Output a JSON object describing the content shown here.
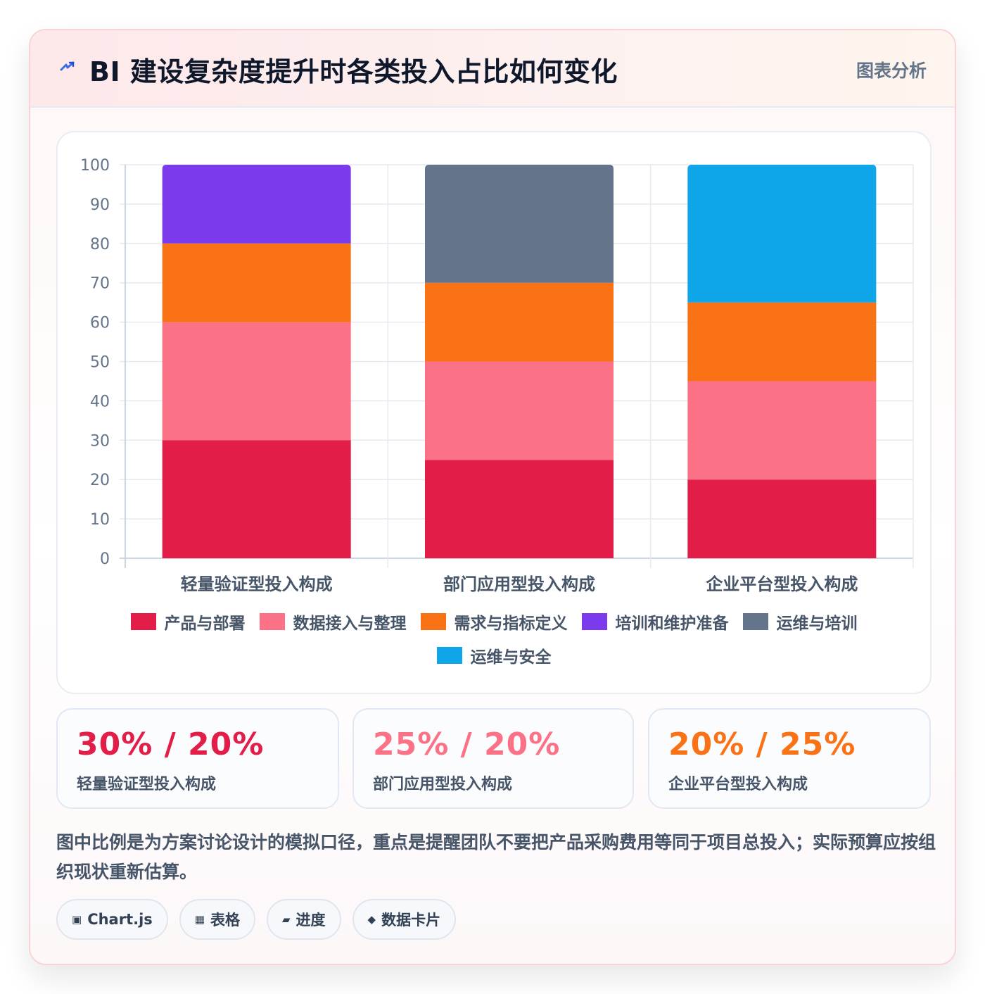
{
  "header": {
    "title": "BI 建设复杂度提升时各类投入占比如何变化",
    "tag": "图表分析",
    "icon": "lightning-icon"
  },
  "chart_data": {
    "type": "bar",
    "stacked": true,
    "categories": [
      "轻量验证型投入构成",
      "部门应用型投入构成",
      "企业平台型投入构成"
    ],
    "series": [
      {
        "name": "产品与部署",
        "color": "#e11d48",
        "values": [
          30,
          25,
          20
        ]
      },
      {
        "name": "数据接入与整理",
        "color": "#fb7185",
        "values": [
          30,
          25,
          25
        ]
      },
      {
        "name": "需求与指标定义",
        "color": "#f97316",
        "values": [
          20,
          20,
          20
        ]
      },
      {
        "name": "培训和维护准备",
        "color": "#7c3aed",
        "values": [
          20,
          0,
          0
        ]
      },
      {
        "name": "运维与培训",
        "color": "#64748b",
        "values": [
          0,
          30,
          0
        ]
      },
      {
        "name": "运维与安全",
        "color": "#0ea5e9",
        "values": [
          0,
          0,
          35
        ]
      }
    ],
    "ylim": [
      0,
      100
    ],
    "yticks": [
      "0",
      "10",
      "20",
      "30",
      "40",
      "50",
      "60",
      "70",
      "80",
      "90",
      "100"
    ],
    "grid": true,
    "legend_position": "bottom"
  },
  "stats": [
    {
      "value": "30% / 20%",
      "label": "轻量验证型投入构成",
      "color": "#e11d48"
    },
    {
      "value": "25% / 20%",
      "label": "部门应用型投入构成",
      "color": "#fb7185"
    },
    {
      "value": "20% / 25%",
      "label": "企业平台型投入构成",
      "color": "#f97316"
    }
  ],
  "note": "图中比例是为方案讨论设计的模拟口径，重点是提醒团队不要把产品采购费用等同于项目总投入；实际预算应按组织现状重新估算。",
  "chips": [
    {
      "icon": "▣",
      "label": "Chart.js"
    },
    {
      "icon": "▦",
      "label": "表格"
    },
    {
      "icon": "▰",
      "label": "进度"
    },
    {
      "icon": "◆",
      "label": "数据卡片"
    }
  ]
}
